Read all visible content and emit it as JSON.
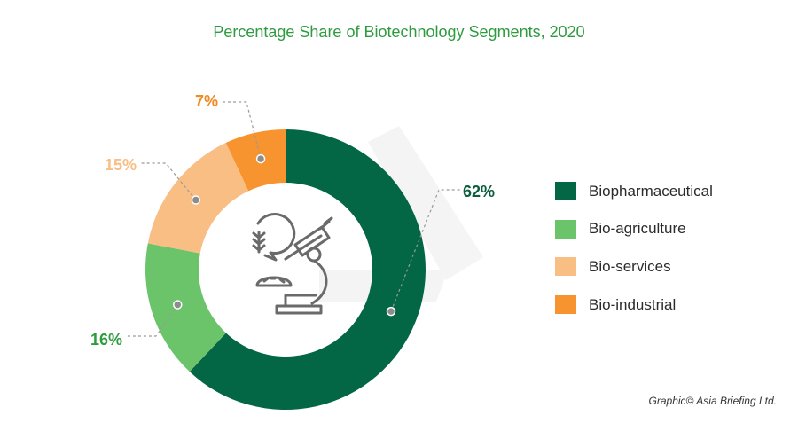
{
  "chart_data": {
    "type": "pie",
    "title": "Percentage Share of Biotechnology Segments, 2020",
    "categories": [
      "Biopharmaceutical",
      "Bio-agriculture",
      "Bio-services",
      "Bio-industrial"
    ],
    "values": [
      62,
      16,
      15,
      7
    ],
    "value_labels": [
      "62%",
      "16%",
      "15%",
      "7%"
    ],
    "colors": [
      "#036745",
      "#6cc46a",
      "#f9be84",
      "#f7942f"
    ],
    "label_colors": [
      "#0a5e3d",
      "#2e9b3f",
      "#f9be84",
      "#f08a24"
    ],
    "donut": true,
    "legend_position": "right"
  },
  "credit": "Graphic© Asia Briefing Ltd.",
  "icon": "microscope-and-wheat-icon"
}
